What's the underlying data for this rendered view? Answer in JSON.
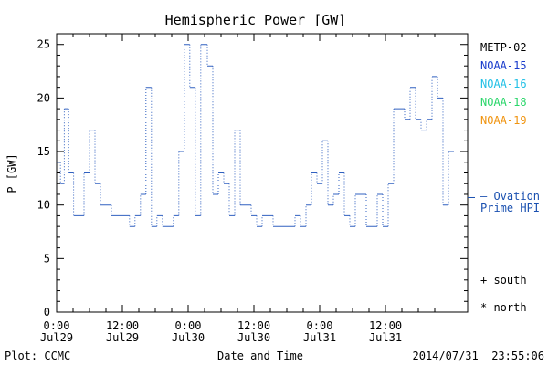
{
  "chart_data": {
    "type": "line",
    "title": "Hemispheric Power [GW]",
    "xlabel": "Date and Time",
    "ylabel": "P [GW]",
    "ylim": [
      0,
      26
    ],
    "yticks": [
      0,
      5,
      10,
      15,
      20,
      25
    ],
    "xlim_hours": [
      0,
      75
    ],
    "x_ticks": [
      {
        "hour": 0,
        "time": "0:00",
        "date": "Jul29"
      },
      {
        "hour": 12,
        "time": "12:00",
        "date": "Jul29"
      },
      {
        "hour": 24,
        "time": "0:00",
        "date": "Jul30"
      },
      {
        "hour": 36,
        "time": "12:00",
        "date": "Jul30"
      },
      {
        "hour": 48,
        "time": "0:00",
        "date": "Jul31"
      },
      {
        "hour": 60,
        "time": "12:00",
        "date": "Jul31"
      }
    ],
    "grid": false,
    "series": [
      {
        "name": "Prime HPI",
        "style": "dotted-step",
        "color": "#3060c0",
        "points": [
          [
            0,
            14
          ],
          [
            0.7,
            12
          ],
          [
            1.4,
            19
          ],
          [
            2.2,
            13
          ],
          [
            3.1,
            9
          ],
          [
            5.0,
            13
          ],
          [
            6.0,
            17
          ],
          [
            7.0,
            12
          ],
          [
            8.0,
            10
          ],
          [
            10.0,
            9
          ],
          [
            12.0,
            9
          ],
          [
            13.3,
            8
          ],
          [
            14.3,
            9
          ],
          [
            15.3,
            11
          ],
          [
            16.3,
            21
          ],
          [
            17.3,
            8
          ],
          [
            18.3,
            9
          ],
          [
            19.3,
            8
          ],
          [
            21.3,
            9
          ],
          [
            22.3,
            15
          ],
          [
            23.3,
            25
          ],
          [
            24.3,
            21
          ],
          [
            25.3,
            9
          ],
          [
            26.3,
            25
          ],
          [
            27.5,
            23
          ],
          [
            28.5,
            11
          ],
          [
            29.5,
            13
          ],
          [
            30.5,
            12
          ],
          [
            31.5,
            9
          ],
          [
            32.5,
            17
          ],
          [
            33.5,
            10
          ],
          [
            34.5,
            10
          ],
          [
            35.5,
            9
          ],
          [
            36.5,
            8
          ],
          [
            37.5,
            9
          ],
          [
            39.5,
            8
          ],
          [
            43.5,
            9
          ],
          [
            44.5,
            8
          ],
          [
            45.5,
            10
          ],
          [
            46.5,
            13
          ],
          [
            47.5,
            12
          ],
          [
            48.5,
            16
          ],
          [
            49.5,
            10
          ],
          [
            50.5,
            11
          ],
          [
            51.5,
            13
          ],
          [
            52.5,
            9
          ],
          [
            53.5,
            8
          ],
          [
            54.5,
            11
          ],
          [
            56.5,
            8
          ],
          [
            58.5,
            11
          ],
          [
            59.5,
            8
          ],
          [
            60.5,
            12
          ],
          [
            61.5,
            19
          ],
          [
            63.5,
            18
          ],
          [
            64.5,
            21
          ],
          [
            65.5,
            18
          ],
          [
            66.5,
            17
          ],
          [
            67.5,
            18
          ],
          [
            68.5,
            22
          ],
          [
            69.5,
            20
          ],
          [
            70.5,
            10
          ],
          [
            71.5,
            15
          ],
          [
            72.5,
            15
          ]
        ]
      }
    ],
    "legend": [
      {
        "label": "METP-02",
        "color": "#000000"
      },
      {
        "label": "NOAA-15",
        "color": "#1a3ccc"
      },
      {
        "label": "NOAA-16",
        "color": "#22c0e6"
      },
      {
        "label": "NOAA-18",
        "color": "#2ad66a"
      },
      {
        "label": "NOAA-19",
        "color": "#f09410"
      }
    ],
    "ovation_legend": {
      "line1": "— Ovation",
      "line2": "Prime HPI",
      "color": "#1a50b0"
    },
    "ovation_level": 10.7,
    "markers": [
      {
        "symbol": "+",
        "label": "south"
      },
      {
        "symbol": "*",
        "label": "north"
      }
    ],
    "footer": {
      "left": "Plot: CCMC",
      "right": "2014/07/31  23:55:06"
    }
  }
}
